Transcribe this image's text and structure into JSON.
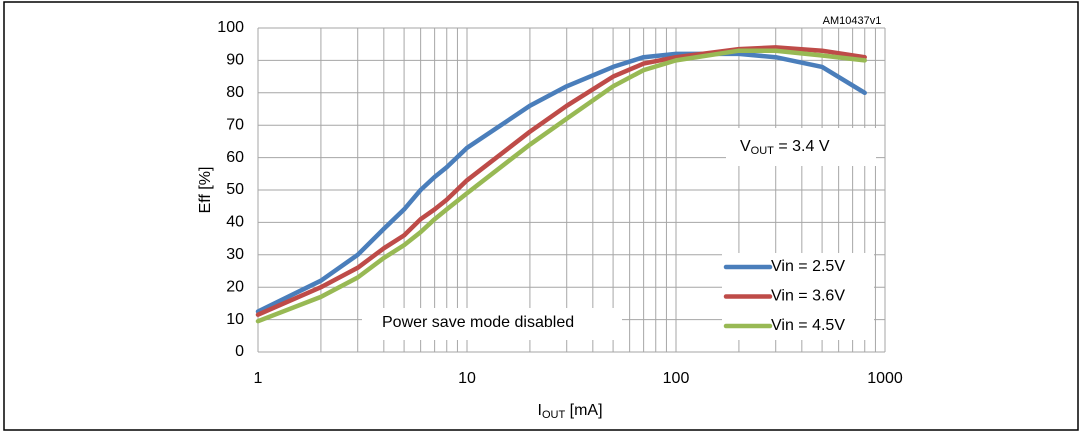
{
  "chart_data": {
    "type": "line",
    "annotation_id": "AM10437v1",
    "ylabel": "Eff  [%]",
    "xlabel": {
      "prefix": "I",
      "sub": "OUT",
      "suffix": " [mA]"
    },
    "vout_note": {
      "prefix": "V",
      "sub": "OUT",
      "suffix": " = 3.4 V"
    },
    "mode_note": "Power save mode disabled",
    "xscale": "log",
    "xlim": [
      1,
      1000
    ],
    "xticks": [
      1,
      10,
      100,
      1000
    ],
    "x_minor_ticks": [
      2,
      3,
      4,
      5,
      6,
      7,
      8,
      9,
      20,
      30,
      40,
      50,
      60,
      70,
      80,
      90,
      200,
      300,
      400,
      500,
      600,
      700,
      800,
      900
    ],
    "ylim": [
      0,
      100
    ],
    "yticks": [
      0,
      10,
      20,
      30,
      40,
      50,
      60,
      70,
      80,
      90,
      100
    ],
    "grid": true,
    "legend": "lower right",
    "x": [
      1,
      2,
      3,
      4,
      5,
      6,
      7,
      8,
      10,
      20,
      30,
      50,
      70,
      100,
      200,
      300,
      500,
      800
    ],
    "series": [
      {
        "name": "Vin = 2.5V",
        "color": "#4a7ebb",
        "values": [
          12.5,
          22,
          30,
          38,
          44,
          50,
          54,
          57,
          63,
          76,
          82,
          88,
          91,
          92,
          92,
          91,
          88,
          80
        ]
      },
      {
        "name": "Vin = 3.6V",
        "color": "#be4b48",
        "values": [
          11.5,
          20,
          26,
          32,
          36,
          41,
          44,
          47,
          53,
          68,
          76,
          85,
          89,
          91,
          93.5,
          94,
          93,
          91
        ]
      },
      {
        "name": "Vin = 4.5V",
        "color": "#98b954",
        "values": [
          9.5,
          17,
          23,
          29,
          33,
          37,
          41,
          44,
          49,
          64,
          72,
          82,
          87,
          90,
          93,
          93,
          91.5,
          90
        ]
      }
    ]
  }
}
